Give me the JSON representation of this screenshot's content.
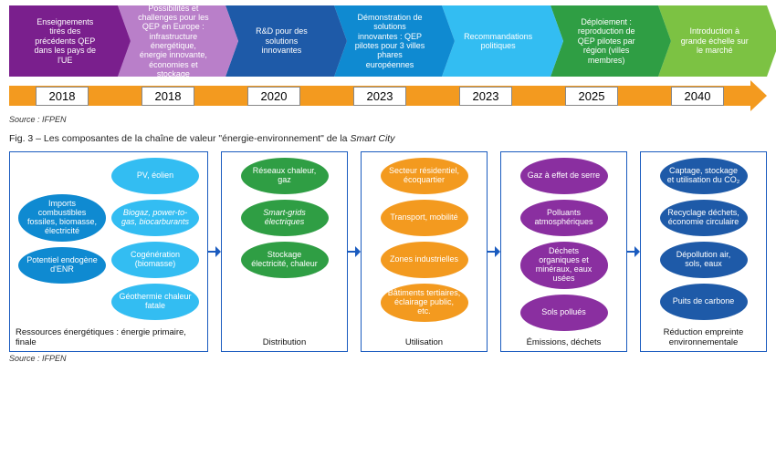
{
  "chevrons": {
    "height": 78,
    "items": [
      {
        "label": "Enseignements tirés des précédents QEP dans les pays de l'UE",
        "bg": "#7a1f8d"
      },
      {
        "label": "Possibilités et challenges pour les QEP en Europe : infrastructure énergétique, énergie innovante, économies et stockage",
        "bg": "#b97fc9"
      },
      {
        "label": "R&D pour des solutions innovantes",
        "bg": "#1e5aa8"
      },
      {
        "label": "Démonstration de solutions innovantes : QEP pilotes pour 3 villes phares européennes",
        "bg": "#0f8ad1"
      },
      {
        "label": "Recommandations politiques",
        "bg": "#33bdf2"
      },
      {
        "label": "Déploiement : reproduction de QEP pilotes par région (villes membres)",
        "bg": "#2f9e44"
      },
      {
        "label": "Introduction à grande échelle sur le marché",
        "bg": "#7cc243"
      }
    ]
  },
  "timeline": {
    "bar_color": "#f39a1f",
    "years": [
      "2018",
      "2018",
      "2020",
      "2023",
      "2023",
      "2025",
      "2040"
    ]
  },
  "source": "Source : IFPEN",
  "figure_caption_prefix": "Fig. 3 – Les composantes de la chaîne de valeur \"énergie-environnement\" de la ",
  "figure_caption_em": "Smart City",
  "chain": {
    "border_color": "#1a5bbf",
    "connector_color": "#1a5bbf",
    "columns": [
      {
        "wide": true,
        "label": "Ressources énergétiques : énergie primaire, finale",
        "subcolumns": [
          {
            "items": [
              {
                "text": "Imports combustibles fossiles, biomasse, électricité",
                "bg": "#0f8ad1"
              },
              {
                "text": "Potentiel endogène d'ENR",
                "bg": "#0f8ad1"
              }
            ]
          },
          {
            "items": [
              {
                "text": "PV, éolien",
                "bg": "#33bdf2"
              },
              {
                "text": "Biogaz, power-to-gas, biocarburants",
                "bg": "#33bdf2",
                "italic": true
              },
              {
                "text": "Cogénération (biomasse)",
                "bg": "#33bdf2"
              },
              {
                "text": "Géothermie chaleur fatale",
                "bg": "#33bdf2"
              }
            ]
          }
        ]
      },
      {
        "label": "Distribution",
        "items": [
          {
            "text": "Réseaux chaleur, gaz",
            "bg": "#2f9e44"
          },
          {
            "text": "Smart-grids électriques",
            "bg": "#2f9e44",
            "italic": true
          },
          {
            "text": "Stockage électricité, chaleur",
            "bg": "#2f9e44"
          }
        ]
      },
      {
        "label": "Utilisation",
        "items": [
          {
            "text": "Secteur résidentiel, écoquartier",
            "bg": "#f39a1f"
          },
          {
            "text": "Transport, mobilité",
            "bg": "#f39a1f"
          },
          {
            "text": "Zones industrielles",
            "bg": "#f39a1f"
          },
          {
            "text": "Bâtiments tertiaires, éclairage public, etc.",
            "bg": "#f39a1f"
          }
        ]
      },
      {
        "label": "Émissions, déchets",
        "items": [
          {
            "text": "Gaz à effet de serre",
            "bg": "#8a2fa0"
          },
          {
            "text": "Polluants atmosphériques",
            "bg": "#8a2fa0"
          },
          {
            "text": "Déchets organiques et minéraux, eaux usées",
            "bg": "#8a2fa0"
          },
          {
            "text": "Sols pollués",
            "bg": "#8a2fa0"
          }
        ]
      },
      {
        "label": "Réduction empreinte environnementale",
        "items": [
          {
            "text": "Captage, stockage et utilisation du CO₂",
            "bg": "#1e5aa8"
          },
          {
            "text": "Recyclage déchets, économie circulaire",
            "bg": "#1e5aa8"
          },
          {
            "text": "Dépollution air, sols, eaux",
            "bg": "#1e5aa8"
          },
          {
            "text": "Puits de carbone",
            "bg": "#1e5aa8"
          }
        ]
      }
    ]
  }
}
